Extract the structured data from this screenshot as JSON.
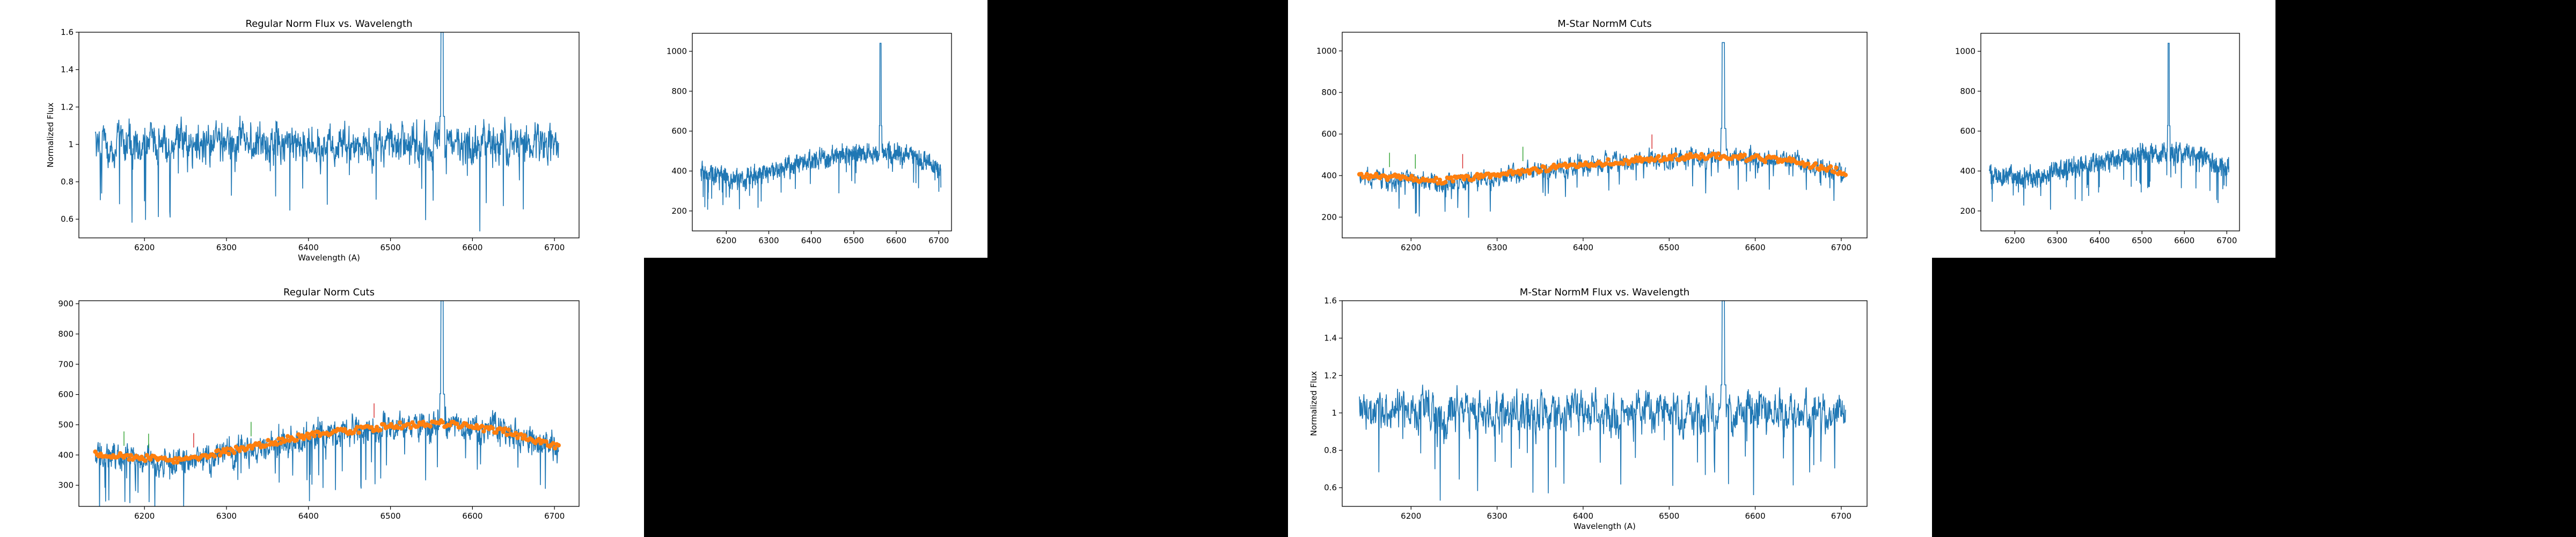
{
  "colors": {
    "flux": "#1f77b4",
    "fit": "#ff7f0e",
    "marker": "#2ca02c",
    "cut": "#d62728",
    "axis": "#000000",
    "blackout": "#000000"
  },
  "chart_data": [
    {
      "id": "reg-flux",
      "type": "line",
      "title": "Regular Norm Flux vs. Wavelength",
      "xlabel": "Wavelength (A)",
      "ylabel": "Normalized Flux",
      "xlim": [
        6120,
        6730
      ],
      "ylim": [
        0.5,
        1.6
      ],
      "xticks": [
        6200,
        6300,
        6400,
        6500,
        6600,
        6700
      ],
      "yticks": [
        0.6,
        0.8,
        1.0,
        1.2,
        1.4,
        1.6
      ],
      "grid": false,
      "series": [
        {
          "kind": "flux",
          "x_range": [
            6140,
            6705
          ],
          "baseline": [
            [
              6140,
              1.0
            ],
            [
              6400,
              1.0
            ],
            [
              6705,
              1.0
            ]
          ],
          "noise": 0.09,
          "emission": {
            "x": 6563,
            "peak": 1.6
          }
        }
      ]
    },
    {
      "id": "reg-raw",
      "type": "line",
      "title": "",
      "xlabel": "",
      "ylabel": "",
      "xlim": [
        6120,
        6730
      ],
      "ylim": [
        100,
        1090
      ],
      "xticks": [
        6200,
        6300,
        6400,
        6500,
        6600,
        6700
      ],
      "yticks": [
        200,
        400,
        600,
        800,
        1000
      ],
      "grid": false,
      "series": [
        {
          "kind": "flux",
          "x_range": [
            6140,
            6705
          ],
          "baseline": [
            [
              6140,
              390
            ],
            [
              6240,
              360
            ],
            [
              6400,
              450
            ],
            [
              6500,
              480
            ],
            [
              6560,
              490
            ],
            [
              6640,
              470
            ],
            [
              6705,
              410
            ]
          ],
          "noise": 40,
          "emission": {
            "x": 6563,
            "peak": 1040
          }
        }
      ]
    },
    {
      "id": "mstar-cuts",
      "type": "line",
      "title": "M-Star NormM Cuts",
      "xlabel": "",
      "ylabel": "",
      "xlim": [
        6120,
        6730
      ],
      "ylim": [
        100,
        1090
      ],
      "xticks": [
        6200,
        6300,
        6400,
        6500,
        6600,
        6700
      ],
      "yticks": [
        200,
        400,
        600,
        800,
        1000
      ],
      "grid": false,
      "series": [
        {
          "kind": "flux",
          "x_range": [
            6140,
            6705
          ],
          "baseline": [
            [
              6140,
              390
            ],
            [
              6240,
              360
            ],
            [
              6400,
              450
            ],
            [
              6500,
              480
            ],
            [
              6560,
              490
            ],
            [
              6640,
              470
            ],
            [
              6705,
              410
            ]
          ],
          "noise": 40,
          "emission": {
            "x": 6563,
            "peak": 1040
          }
        },
        {
          "kind": "fit",
          "x_range": [
            6140,
            6705
          ],
          "baseline": [
            [
              6140,
              400
            ],
            [
              6240,
              375
            ],
            [
              6400,
              455
            ],
            [
              6500,
              485
            ],
            [
              6560,
              495
            ],
            [
              6640,
              470
            ],
            [
              6705,
              415
            ]
          ]
        }
      ]
    },
    {
      "id": "mstar-raw",
      "type": "line",
      "title": "",
      "xlabel": "",
      "ylabel": "",
      "xlim": [
        6120,
        6730
      ],
      "ylim": [
        100,
        1090
      ],
      "xticks": [
        6200,
        6300,
        6400,
        6500,
        6600,
        6700
      ],
      "yticks": [
        200,
        400,
        600,
        800,
        1000
      ],
      "grid": false,
      "series": [
        {
          "kind": "flux",
          "x_range": [
            6140,
            6705
          ],
          "baseline": [
            [
              6140,
              390
            ],
            [
              6240,
              360
            ],
            [
              6400,
              450
            ],
            [
              6500,
              480
            ],
            [
              6560,
              490
            ],
            [
              6640,
              470
            ],
            [
              6705,
              410
            ]
          ],
          "noise": 40,
          "emission": {
            "x": 6563,
            "peak": 1040
          }
        }
      ]
    },
    {
      "id": "reg-cuts",
      "type": "line",
      "title": "Regular Norm Cuts",
      "xlabel": "",
      "ylabel": "",
      "xlim": [
        6120,
        6730
      ],
      "ylim": [
        230,
        910
      ],
      "xticks": [
        6200,
        6300,
        6400,
        6500,
        6600,
        6700
      ],
      "yticks": [
        300,
        400,
        500,
        600,
        700,
        800,
        900
      ],
      "grid": false,
      "series": [
        {
          "kind": "flux",
          "x_range": [
            6140,
            6705
          ],
          "baseline": [
            [
              6140,
              400
            ],
            [
              6240,
              375
            ],
            [
              6400,
              460
            ],
            [
              6500,
              490
            ],
            [
              6560,
              500
            ],
            [
              6640,
              475
            ],
            [
              6705,
              420
            ]
          ],
          "noise": 40,
          "emission": {
            "x": 6563,
            "peak": 910
          }
        },
        {
          "kind": "fit",
          "x_range": [
            6140,
            6705
          ],
          "baseline": [
            [
              6140,
              405
            ],
            [
              6240,
              380
            ],
            [
              6400,
              465
            ],
            [
              6500,
              495
            ],
            [
              6560,
              505
            ],
            [
              6640,
              478
            ],
            [
              6705,
              425
            ]
          ]
        }
      ]
    },
    {
      "id": "mstar-flux",
      "type": "line",
      "title": "M-Star NormM Flux vs. Wavelength",
      "xlabel": "Wavelength (A)",
      "ylabel": "Normalized Flux",
      "xlim": [
        6120,
        6730
      ],
      "ylim": [
        0.5,
        1.6
      ],
      "xticks": [
        6200,
        6300,
        6400,
        6500,
        6600,
        6700
      ],
      "yticks": [
        0.6,
        0.8,
        1.0,
        1.2,
        1.4,
        1.6
      ],
      "grid": false,
      "series": [
        {
          "kind": "flux",
          "x_range": [
            6140,
            6705
          ],
          "baseline": [
            [
              6140,
              1.0
            ],
            [
              6400,
              1.0
            ],
            [
              6705,
              1.0
            ]
          ],
          "noise": 0.09,
          "emission": {
            "x": 6563,
            "peak": 1.6
          }
        }
      ]
    }
  ]
}
